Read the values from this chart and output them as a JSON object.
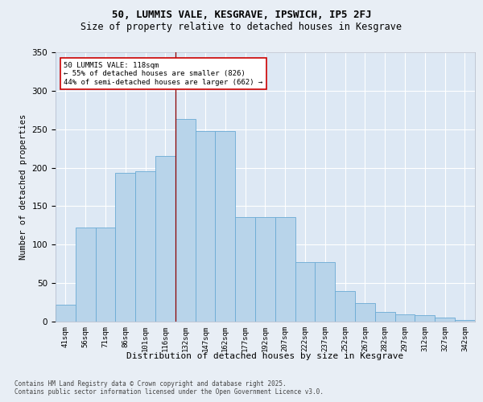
{
  "title1": "50, LUMMIS VALE, KESGRAVE, IPSWICH, IP5 2FJ",
  "title2": "Size of property relative to detached houses in Kesgrave",
  "xlabel": "Distribution of detached houses by size in Kesgrave",
  "ylabel": "Number of detached properties",
  "categories": [
    "41sqm",
    "56sqm",
    "71sqm",
    "86sqm",
    "101sqm",
    "116sqm",
    "132sqm",
    "147sqm",
    "162sqm",
    "177sqm",
    "192sqm",
    "207sqm",
    "222sqm",
    "237sqm",
    "252sqm",
    "267sqm",
    "282sqm",
    "297sqm",
    "312sqm",
    "327sqm",
    "342sqm"
  ],
  "bar_values": [
    22,
    122,
    122,
    193,
    195,
    215,
    263,
    248,
    248,
    136,
    136,
    136,
    77,
    77,
    40,
    24,
    13,
    9,
    8,
    5,
    2
  ],
  "bar_color": "#b8d4ea",
  "bar_edge_color": "#6aaad4",
  "annotation_text": "50 LUMMIS VALE: 118sqm\n← 55% of detached houses are smaller (826)\n44% of semi-detached houses are larger (662) →",
  "vline_x": 5.5,
  "vline_color": "#8b0000",
  "box_edge_color": "#cc0000",
  "background_color": "#e8eef5",
  "plot_bg_color": "#dde8f4",
  "grid_color": "#ffffff",
  "footer": "Contains HM Land Registry data © Crown copyright and database right 2025.\nContains public sector information licensed under the Open Government Licence v3.0.",
  "ylim": [
    0,
    350
  ],
  "yticks": [
    0,
    50,
    100,
    150,
    200,
    250,
    300,
    350
  ],
  "title1_fontsize": 9,
  "title2_fontsize": 8.5,
  "ylabel_fontsize": 7.5,
  "xlabel_fontsize": 8,
  "tick_fontsize": 7.5,
  "xtick_fontsize": 6.5,
  "ann_fontsize": 6.5,
  "footer_fontsize": 5.5
}
